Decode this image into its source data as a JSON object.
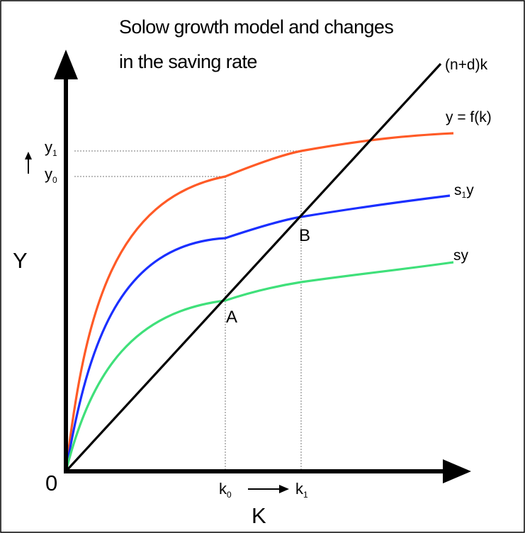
{
  "figure": {
    "title_line1": "Solow growth model and changes",
    "title_line2": "in the saving rate",
    "axes": {
      "y_label": "Y",
      "x_label": "K",
      "origin": "0"
    },
    "curves": {
      "depreciation": {
        "label": "(n+d)k",
        "color": "#000000"
      },
      "production": {
        "label": "y = f(k)",
        "color": "#ff5a26"
      },
      "saving_new": {
        "label_base": "s",
        "label_sub": "1",
        "label_tail": "y",
        "color": "#1a2fff"
      },
      "saving_old": {
        "label": "sy",
        "color": "#3fe07a"
      }
    },
    "points": {
      "a": "A",
      "b": "B"
    },
    "ticks": {
      "y1": {
        "base": "y",
        "sub": "1"
      },
      "y0": {
        "base": "y",
        "sub": "0"
      },
      "k0": {
        "base": "k",
        "sub": "0"
      },
      "k1": {
        "base": "k",
        "sub": "1"
      }
    }
  }
}
